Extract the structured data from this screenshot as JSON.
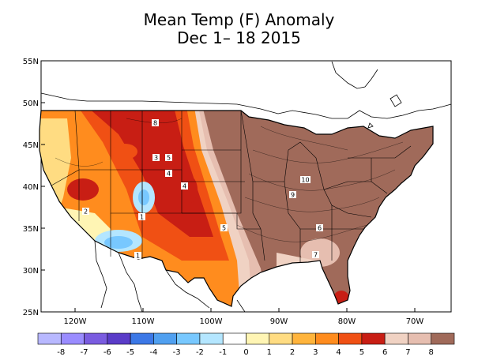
{
  "title": "Mean Temp (F) Anomaly",
  "subtitle": "Dec 1– 18 2015",
  "map": {
    "lat_ticks": [
      "55N",
      "50N",
      "45N",
      "40N",
      "35N",
      "30N",
      "25N"
    ],
    "lon_ticks": [
      "120W",
      "110W",
      "100W",
      "90W",
      "80W",
      "70W"
    ],
    "contour_labels": [
      "8",
      "3",
      "5",
      "4",
      "4",
      "2",
      "1",
      "5",
      "10",
      "9",
      "6",
      "7",
      "1"
    ]
  },
  "legend": {
    "labels": [
      "-8",
      "-7",
      "-6",
      "-5",
      "-4",
      "-3",
      "-2",
      "-1",
      "0",
      "1",
      "2",
      "3",
      "4",
      "5",
      "6",
      "7",
      "8"
    ],
    "colors": [
      "#b8b8ff",
      "#9a8cff",
      "#7a5ce0",
      "#5a3cc8",
      "#3c78e6",
      "#50a0f0",
      "#78c8ff",
      "#b4e6ff",
      "#ffffff",
      "#fff5b4",
      "#ffdc82",
      "#ffb43c",
      "#ff8c1e",
      "#f05014",
      "#c81e14",
      "#f0d2c3",
      "#e6beb0",
      "#a06a5a"
    ]
  }
}
